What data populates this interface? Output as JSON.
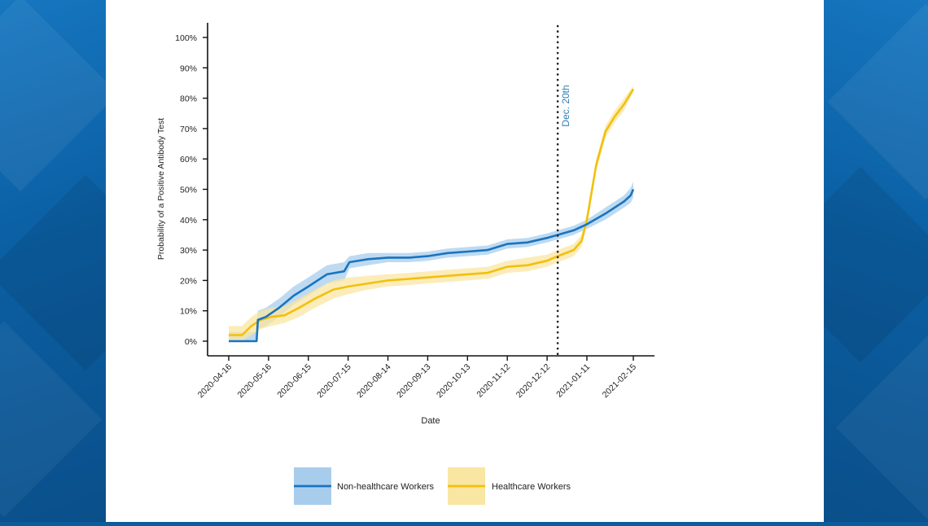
{
  "chart_data": {
    "type": "line",
    "title": "",
    "xlabel": "Date",
    "ylabel": "Probability of a Positive Antibody Test",
    "y_ticks": [
      "0%",
      "10%",
      "20%",
      "30%",
      "40%",
      "50%",
      "60%",
      "70%",
      "80%",
      "90%",
      "100%"
    ],
    "ylim": [
      0,
      100
    ],
    "x_ticks": [
      "2020-04-16",
      "2020-05-16",
      "2020-06-15",
      "2020-07-15",
      "2020-08-14",
      "2020-09-13",
      "2020-10-13",
      "2020-11-12",
      "2020-12-12",
      "2021-01-11",
      "2021-02-15"
    ],
    "xlim": [
      "2020-04-16",
      "2021-02-15"
    ],
    "annotation": {
      "label": "Dec. 20th",
      "x": "2020-12-20",
      "style": "dotted vertical line"
    },
    "legend_position": "bottom",
    "series": [
      {
        "name": "Non-healthcare Workers",
        "color": "#1a74bf",
        "band_color": "#a8cdec",
        "points": [
          [
            "2020-04-16",
            0
          ],
          [
            "2020-05-07",
            0
          ],
          [
            "2020-05-08",
            7
          ],
          [
            "2020-05-14",
            8
          ],
          [
            "2020-05-24",
            11
          ],
          [
            "2020-06-04",
            15
          ],
          [
            "2020-06-15",
            18
          ],
          [
            "2020-06-29",
            22
          ],
          [
            "2020-07-12",
            23
          ],
          [
            "2020-07-16",
            26
          ],
          [
            "2020-07-30",
            27
          ],
          [
            "2020-08-14",
            27.5
          ],
          [
            "2020-08-30",
            27.5
          ],
          [
            "2020-09-13",
            28
          ],
          [
            "2020-09-28",
            29
          ],
          [
            "2020-10-13",
            29.5
          ],
          [
            "2020-10-28",
            30
          ],
          [
            "2020-11-12",
            32
          ],
          [
            "2020-11-27",
            32.5
          ],
          [
            "2020-12-12",
            34
          ],
          [
            "2020-12-20",
            35
          ],
          [
            "2021-01-01",
            36.5
          ],
          [
            "2021-01-11",
            38.5
          ],
          [
            "2021-01-25",
            42
          ],
          [
            "2021-02-08",
            46
          ],
          [
            "2021-02-13",
            48
          ],
          [
            "2021-02-15",
            50
          ]
        ],
        "lower": [
          0,
          0,
          4,
          5,
          8,
          12,
          15,
          19,
          20,
          24,
          25,
          26,
          26,
          26.5,
          27.5,
          28,
          28.5,
          30.5,
          31,
          32.5,
          33.5,
          35,
          37,
          40,
          44,
          45.5,
          47.5
        ],
        "upper": [
          3,
          3,
          10,
          11,
          14,
          18,
          21,
          25,
          26,
          28,
          29,
          29,
          29,
          29.5,
          30.5,
          31,
          31.5,
          33.5,
          34,
          35.5,
          36.5,
          38,
          40,
          44,
          48,
          50.5,
          52.5
        ]
      },
      {
        "name": "Healthcare Workers",
        "color": "#f2c00d",
        "band_color": "#f9e6a2",
        "points": [
          [
            "2020-04-16",
            2
          ],
          [
            "2020-04-26",
            2
          ],
          [
            "2020-05-03",
            5
          ],
          [
            "2020-05-10",
            7
          ],
          [
            "2020-05-18",
            8
          ],
          [
            "2020-05-28",
            8.5
          ],
          [
            "2020-06-08",
            11
          ],
          [
            "2020-06-20",
            14
          ],
          [
            "2020-07-04",
            17
          ],
          [
            "2020-07-15",
            18
          ],
          [
            "2020-07-30",
            19
          ],
          [
            "2020-08-14",
            20
          ],
          [
            "2020-08-30",
            20.5
          ],
          [
            "2020-09-13",
            21
          ],
          [
            "2020-09-28",
            21.5
          ],
          [
            "2020-10-13",
            22
          ],
          [
            "2020-10-28",
            22.5
          ],
          [
            "2020-11-12",
            24.5
          ],
          [
            "2020-11-27",
            25
          ],
          [
            "2020-12-12",
            26.5
          ],
          [
            "2020-12-20",
            28
          ],
          [
            "2021-01-01",
            30
          ],
          [
            "2021-01-07",
            33
          ],
          [
            "2021-01-11",
            40
          ],
          [
            "2021-01-18",
            58
          ],
          [
            "2021-01-25",
            69
          ],
          [
            "2021-02-01",
            74
          ],
          [
            "2021-02-08",
            78
          ],
          [
            "2021-02-15",
            83
          ]
        ],
        "lower": [
          0,
          0,
          2,
          4,
          5,
          6,
          8,
          11,
          14,
          15.5,
          17,
          18,
          18.5,
          19,
          19.5,
          20,
          20.5,
          22.5,
          23,
          24.5,
          26,
          28,
          31,
          38,
          56,
          67,
          72,
          76,
          82
        ],
        "upper": [
          5,
          5,
          8,
          10,
          11,
          11.5,
          14,
          17,
          20,
          21,
          21.5,
          22,
          22.5,
          23,
          23.5,
          24,
          24.5,
          26.5,
          27.5,
          28.5,
          30,
          32,
          35,
          42,
          60,
          71,
          76,
          80,
          84
        ]
      }
    ]
  }
}
